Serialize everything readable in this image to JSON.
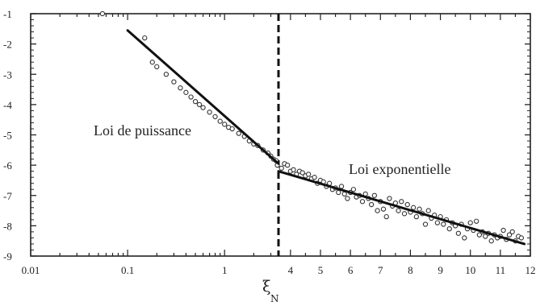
{
  "chart_data": {
    "type": "scatter",
    "xlabel": "ξ",
    "xlabel_sub": "N",
    "ylabel": "",
    "ylim": [
      -9,
      -1
    ],
    "y_ticks": [
      "-1",
      "-2",
      "-3",
      "-4",
      "-5",
      "-6",
      "-7",
      "-8",
      "-9"
    ],
    "x_ticks_log": [
      "0.01",
      "0.1",
      "1"
    ],
    "x_ticks_linear": [
      "4",
      "5",
      "6",
      "7",
      "8",
      "9",
      "10",
      "11",
      "12"
    ],
    "x_scale_note": "log scale 0.01 to 3.6 (left), linear scale 3.6 to 12 (right)",
    "divider_x": 3.6,
    "annotations": [
      {
        "text": "Loi de puissance",
        "region": "left"
      },
      {
        "text": "Loi exponentielle",
        "region": "right"
      }
    ],
    "fit_lines": [
      {
        "name": "power-law-fit",
        "x": [
          0.1,
          3.6
        ],
        "y": [
          -1.55,
          -5.95
        ]
      },
      {
        "name": "exponential-fit",
        "x": [
          3.6,
          11.8
        ],
        "y": [
          -6.2,
          -8.6
        ]
      }
    ],
    "points_log": [
      [
        0.15,
        -1.8
      ],
      [
        0.18,
        -2.6
      ],
      [
        0.2,
        -2.75
      ],
      [
        0.25,
        -3.0
      ],
      [
        0.3,
        -3.25
      ],
      [
        0.35,
        -3.45
      ],
      [
        0.4,
        -3.6
      ],
      [
        0.45,
        -3.75
      ],
      [
        0.5,
        -3.9
      ],
      [
        0.55,
        -4.0
      ],
      [
        0.6,
        -4.1
      ],
      [
        0.7,
        -4.25
      ],
      [
        0.8,
        -4.4
      ],
      [
        0.9,
        -4.55
      ],
      [
        1.0,
        -4.65
      ],
      [
        1.1,
        -4.75
      ],
      [
        1.2,
        -4.8
      ],
      [
        1.4,
        -4.95
      ],
      [
        1.6,
        -5.05
      ],
      [
        1.8,
        -5.2
      ],
      [
        2.0,
        -5.3
      ],
      [
        2.2,
        -5.35
      ],
      [
        2.5,
        -5.5
      ],
      [
        2.8,
        -5.6
      ],
      [
        3.0,
        -5.7
      ],
      [
        3.2,
        -5.8
      ],
      [
        3.4,
        -5.85
      ],
      [
        3.5,
        -6.0
      ]
    ],
    "points_linear": [
      [
        3.7,
        -6.1
      ],
      [
        3.8,
        -5.95
      ],
      [
        3.9,
        -6.0
      ],
      [
        4.0,
        -6.2
      ],
      [
        4.1,
        -6.15
      ],
      [
        4.2,
        -6.3
      ],
      [
        4.3,
        -6.2
      ],
      [
        4.4,
        -6.25
      ],
      [
        4.5,
        -6.35
      ],
      [
        4.6,
        -6.3
      ],
      [
        4.7,
        -6.45
      ],
      [
        4.8,
        -6.4
      ],
      [
        4.9,
        -6.6
      ],
      [
        5.0,
        -6.5
      ],
      [
        5.1,
        -6.55
      ],
      [
        5.2,
        -6.7
      ],
      [
        5.3,
        -6.6
      ],
      [
        5.4,
        -6.8
      ],
      [
        5.5,
        -6.75
      ],
      [
        5.6,
        -6.9
      ],
      [
        5.7,
        -6.7
      ],
      [
        5.8,
        -6.95
      ],
      [
        5.9,
        -7.1
      ],
      [
        6.0,
        -6.9
      ],
      [
        6.1,
        -6.8
      ],
      [
        6.2,
        -7.05
      ],
      [
        6.3,
        -7.0
      ],
      [
        6.4,
        -7.2
      ],
      [
        6.5,
        -6.95
      ],
      [
        6.6,
        -7.1
      ],
      [
        6.7,
        -7.3
      ],
      [
        6.8,
        -7.0
      ],
      [
        6.9,
        -7.5
      ],
      [
        7.0,
        -7.2
      ],
      [
        7.1,
        -7.45
      ],
      [
        7.2,
        -7.7
      ],
      [
        7.3,
        -7.1
      ],
      [
        7.4,
        -7.35
      ],
      [
        7.5,
        -7.25
      ],
      [
        7.6,
        -7.5
      ],
      [
        7.7,
        -7.2
      ],
      [
        7.8,
        -7.6
      ],
      [
        7.9,
        -7.3
      ],
      [
        8.0,
        -7.55
      ],
      [
        8.1,
        -7.4
      ],
      [
        8.2,
        -7.7
      ],
      [
        8.3,
        -7.45
      ],
      [
        8.4,
        -7.6
      ],
      [
        8.5,
        -7.95
      ],
      [
        8.6,
        -7.5
      ],
      [
        8.7,
        -7.75
      ],
      [
        8.8,
        -7.65
      ],
      [
        8.9,
        -7.9
      ],
      [
        9.0,
        -7.7
      ],
      [
        9.1,
        -7.95
      ],
      [
        9.2,
        -7.8
      ],
      [
        9.3,
        -8.1
      ],
      [
        9.4,
        -7.9
      ],
      [
        9.5,
        -8.0
      ],
      [
        9.6,
        -8.25
      ],
      [
        9.7,
        -7.95
      ],
      [
        9.8,
        -8.4
      ],
      [
        9.9,
        -8.1
      ],
      [
        10.0,
        -7.9
      ],
      [
        10.1,
        -8.15
      ],
      [
        10.2,
        -7.85
      ],
      [
        10.3,
        -8.3
      ],
      [
        10.4,
        -8.2
      ],
      [
        10.5,
        -8.35
      ],
      [
        10.6,
        -8.25
      ],
      [
        10.7,
        -8.5
      ],
      [
        10.8,
        -8.3
      ],
      [
        10.9,
        -8.4
      ],
      [
        11.0,
        -8.35
      ],
      [
        11.1,
        -8.15
      ],
      [
        11.2,
        -8.45
      ],
      [
        11.3,
        -8.3
      ],
      [
        11.4,
        -8.2
      ],
      [
        11.5,
        -8.5
      ],
      [
        11.6,
        -8.35
      ],
      [
        11.7,
        -8.4
      ]
    ]
  }
}
